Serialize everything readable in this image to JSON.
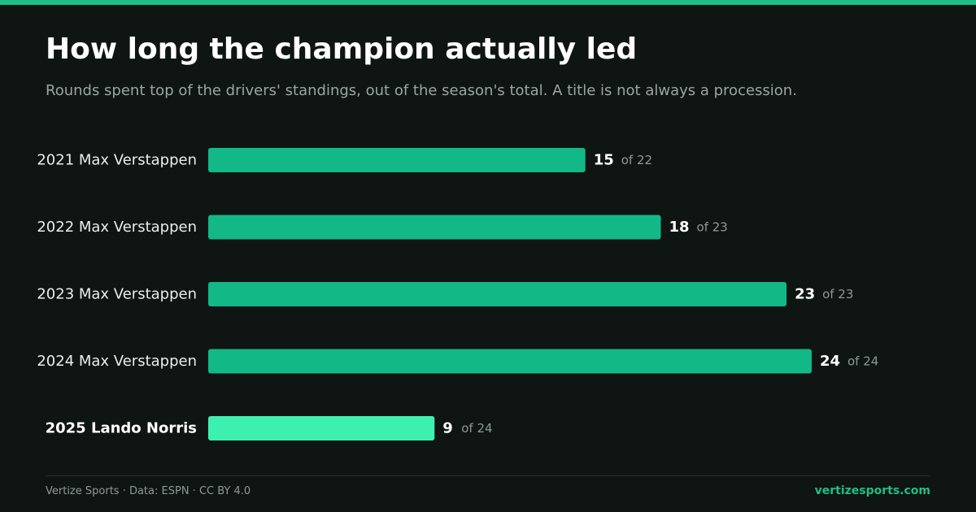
{
  "header": {
    "title": "How long the champion actually led",
    "subtitle": "Rounds spent top of the drivers' standings, out of the season's total. A title is not always a procession."
  },
  "chart_data": {
    "type": "bar",
    "orientation": "horizontal",
    "title": "How long the champion actually led",
    "subtitle": "Rounds spent top of the drivers' standings, out of the season's total. A title is not always a procession.",
    "categories": [
      "2021 Max Verstappen",
      "2022 Max Verstappen",
      "2023 Max Verstappen",
      "2024 Max Verstappen",
      "2025 Lando Norris"
    ],
    "values": [
      15,
      18,
      23,
      24,
      9
    ],
    "totals": [
      22,
      23,
      23,
      24,
      24
    ],
    "total_labels": [
      "of 22",
      "of 23",
      "of 23",
      "of 24",
      "of 24"
    ],
    "highlight_index": 4,
    "xlim": [
      0,
      24
    ],
    "grid": false,
    "legend": "none",
    "colors": {
      "bar": "#12b886",
      "bar_highlight": "#3ef0b0"
    }
  },
  "footer": {
    "credit": "Vertize Sports · Data: ESPN · CC BY 4.0",
    "site": "vertizesports.com"
  },
  "colors": {
    "background": "#0e1513",
    "accent": "#1fbf85",
    "muted_text": "#8e9a95"
  }
}
